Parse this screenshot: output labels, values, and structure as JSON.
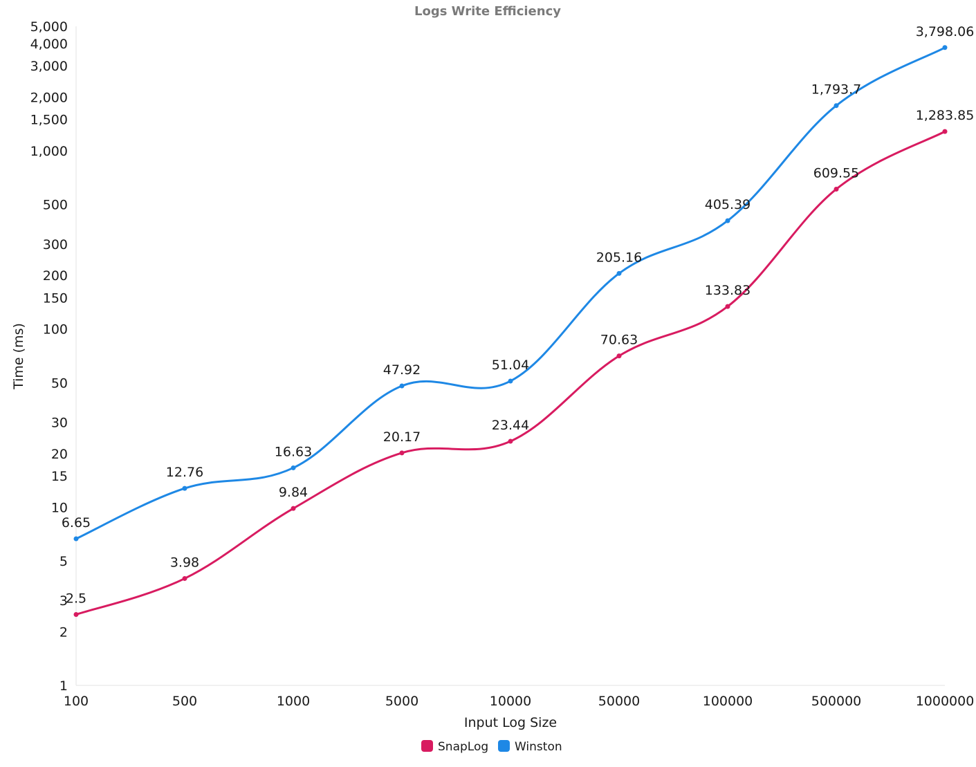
{
  "chart_data": {
    "type": "line",
    "title": "Logs Write Efficiency",
    "xlabel": "Input Log Size",
    "ylabel": "Time (ms)",
    "y_scale": "log",
    "ylim": [
      1,
      5000
    ],
    "categories": [
      "100",
      "500",
      "1000",
      "5000",
      "10000",
      "50000",
      "100000",
      "500000",
      "1000000"
    ],
    "y_ticks": [
      1,
      2,
      3,
      5,
      10,
      15,
      20,
      30,
      50,
      100,
      150,
      200,
      300,
      500,
      1000,
      1500,
      2000,
      3000,
      4000,
      5000
    ],
    "y_tick_labels": [
      "1",
      "2",
      "3",
      "5",
      "10",
      "15",
      "20",
      "30",
      "50",
      "100",
      "150",
      "200",
      "300",
      "500",
      "1,000",
      "1,500",
      "2,000",
      "3,000",
      "4,000",
      "5,000"
    ],
    "grid": false,
    "legend_position": "bottom-center",
    "series": [
      {
        "name": "SnapLog",
        "color": "#d81b60",
        "values": [
          2.5,
          3.98,
          9.84,
          20.17,
          23.44,
          70.63,
          133.83,
          609.55,
          1283.85
        ],
        "labels": [
          "2.5",
          "3.98",
          "9.84",
          "20.17",
          "23.44",
          "70.63",
          "133.83",
          "609.55",
          "1,283.85"
        ]
      },
      {
        "name": "Winston",
        "color": "#1e88e5",
        "values": [
          6.65,
          12.76,
          16.63,
          47.92,
          51.04,
          205.16,
          405.39,
          1793.7,
          3798.06
        ],
        "labels": [
          "6.65",
          "12.76",
          "16.63",
          "47.92",
          "51.04",
          "205.16",
          "405.39",
          "1,793.7",
          "3,798.06"
        ]
      }
    ]
  }
}
